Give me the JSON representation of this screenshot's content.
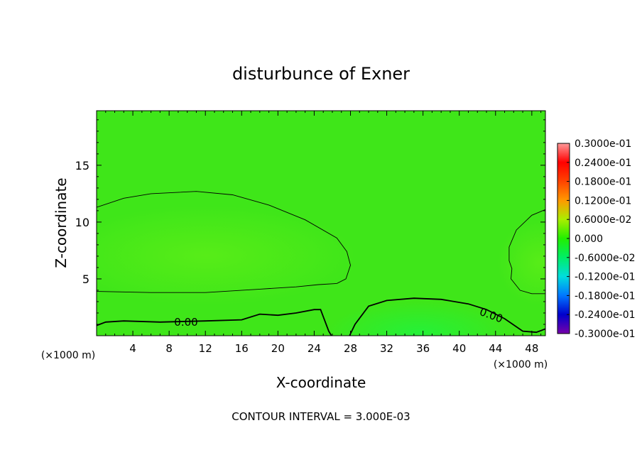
{
  "chart_data": {
    "type": "heatmap",
    "title": "disturbunce of Exner",
    "xlabel": "X-coordinate",
    "ylabel": "Z-coordinate",
    "x_unit": "(×1000 m)",
    "x_unit_right": "(×1000 m)",
    "footer": "CONTOUR INTERVAL = 3.000E-03",
    "xlim": [
      0,
      49.5
    ],
    "ylim": [
      0,
      19.8
    ],
    "x_ticks": [
      4,
      8,
      12,
      16,
      20,
      24,
      28,
      32,
      36,
      40,
      44,
      48
    ],
    "y_ticks": [
      5,
      10,
      15
    ],
    "contour_level_label": "0.00",
    "zero_contours": [
      {
        "name": "upper-left",
        "points": [
          [
            0,
            11.3
          ],
          [
            3,
            12.1
          ],
          [
            6,
            12.5
          ],
          [
            11,
            12.7
          ],
          [
            15,
            12.4
          ],
          [
            19,
            11.5
          ],
          [
            23,
            10.2
          ],
          [
            26.5,
            8.6
          ],
          [
            27.6,
            7.4
          ],
          [
            28,
            6.2
          ],
          [
            27.5,
            5.0
          ],
          [
            26.5,
            4.6
          ],
          [
            24.5,
            4.5
          ],
          [
            22,
            4.3
          ],
          [
            18,
            4.1
          ],
          [
            12,
            3.8
          ],
          [
            6,
            3.8
          ],
          [
            0,
            3.9
          ]
        ]
      },
      {
        "name": "bottom-left",
        "points": [
          [
            0,
            0.9
          ],
          [
            1,
            1.2
          ],
          [
            3,
            1.3
          ],
          [
            7,
            1.2
          ],
          [
            12,
            1.3
          ],
          [
            16,
            1.4
          ],
          [
            18,
            1.9
          ],
          [
            20,
            1.8
          ],
          [
            22,
            2.0
          ],
          [
            24,
            2.3
          ],
          [
            24.7,
            2.3
          ],
          [
            25.6,
            0.4
          ],
          [
            25.9,
            0
          ]
        ]
      },
      {
        "name": "bottom-middle",
        "points": [
          [
            27.9,
            0
          ],
          [
            28.5,
            1.0
          ],
          [
            30,
            2.6
          ],
          [
            32,
            3.1
          ],
          [
            35,
            3.3
          ],
          [
            38,
            3.2
          ],
          [
            41,
            2.8
          ],
          [
            43,
            2.3
          ],
          [
            45,
            1.5
          ],
          [
            47,
            0.4
          ],
          [
            48.5,
            0.3
          ],
          [
            49.5,
            0.6
          ]
        ]
      },
      {
        "name": "right",
        "points": [
          [
            49.5,
            11.1
          ],
          [
            48,
            10.6
          ],
          [
            46.3,
            9.3
          ],
          [
            45.5,
            7.8
          ],
          [
            45.5,
            6.6
          ],
          [
            45.8,
            5.9
          ],
          [
            45.7,
            5.0
          ],
          [
            46.7,
            4.0
          ],
          [
            48,
            3.7
          ],
          [
            49.5,
            3.7
          ]
        ]
      }
    ],
    "colorbar": {
      "labels": [
        "0.3000e-01",
        "0.2400e-01",
        "0.1800e-01",
        "0.1200e-01",
        "0.6000e-02",
        "0.000",
        "-0.6000e-02",
        "-0.1200e-01",
        "-0.1800e-01",
        "-0.2400e-01",
        "-0.3000e-01"
      ],
      "colors": [
        "#ff9999",
        "#ff0000",
        "#ff4400",
        "#ff9900",
        "#aaee00",
        "#22ee00",
        "#00ee66",
        "#00dddd",
        "#0077ff",
        "#0000cc",
        "#7700aa"
      ]
    },
    "colors": {
      "field": "#3fe619",
      "field_light": "#52eb1a",
      "field_bottom": "#2ef52a"
    }
  }
}
